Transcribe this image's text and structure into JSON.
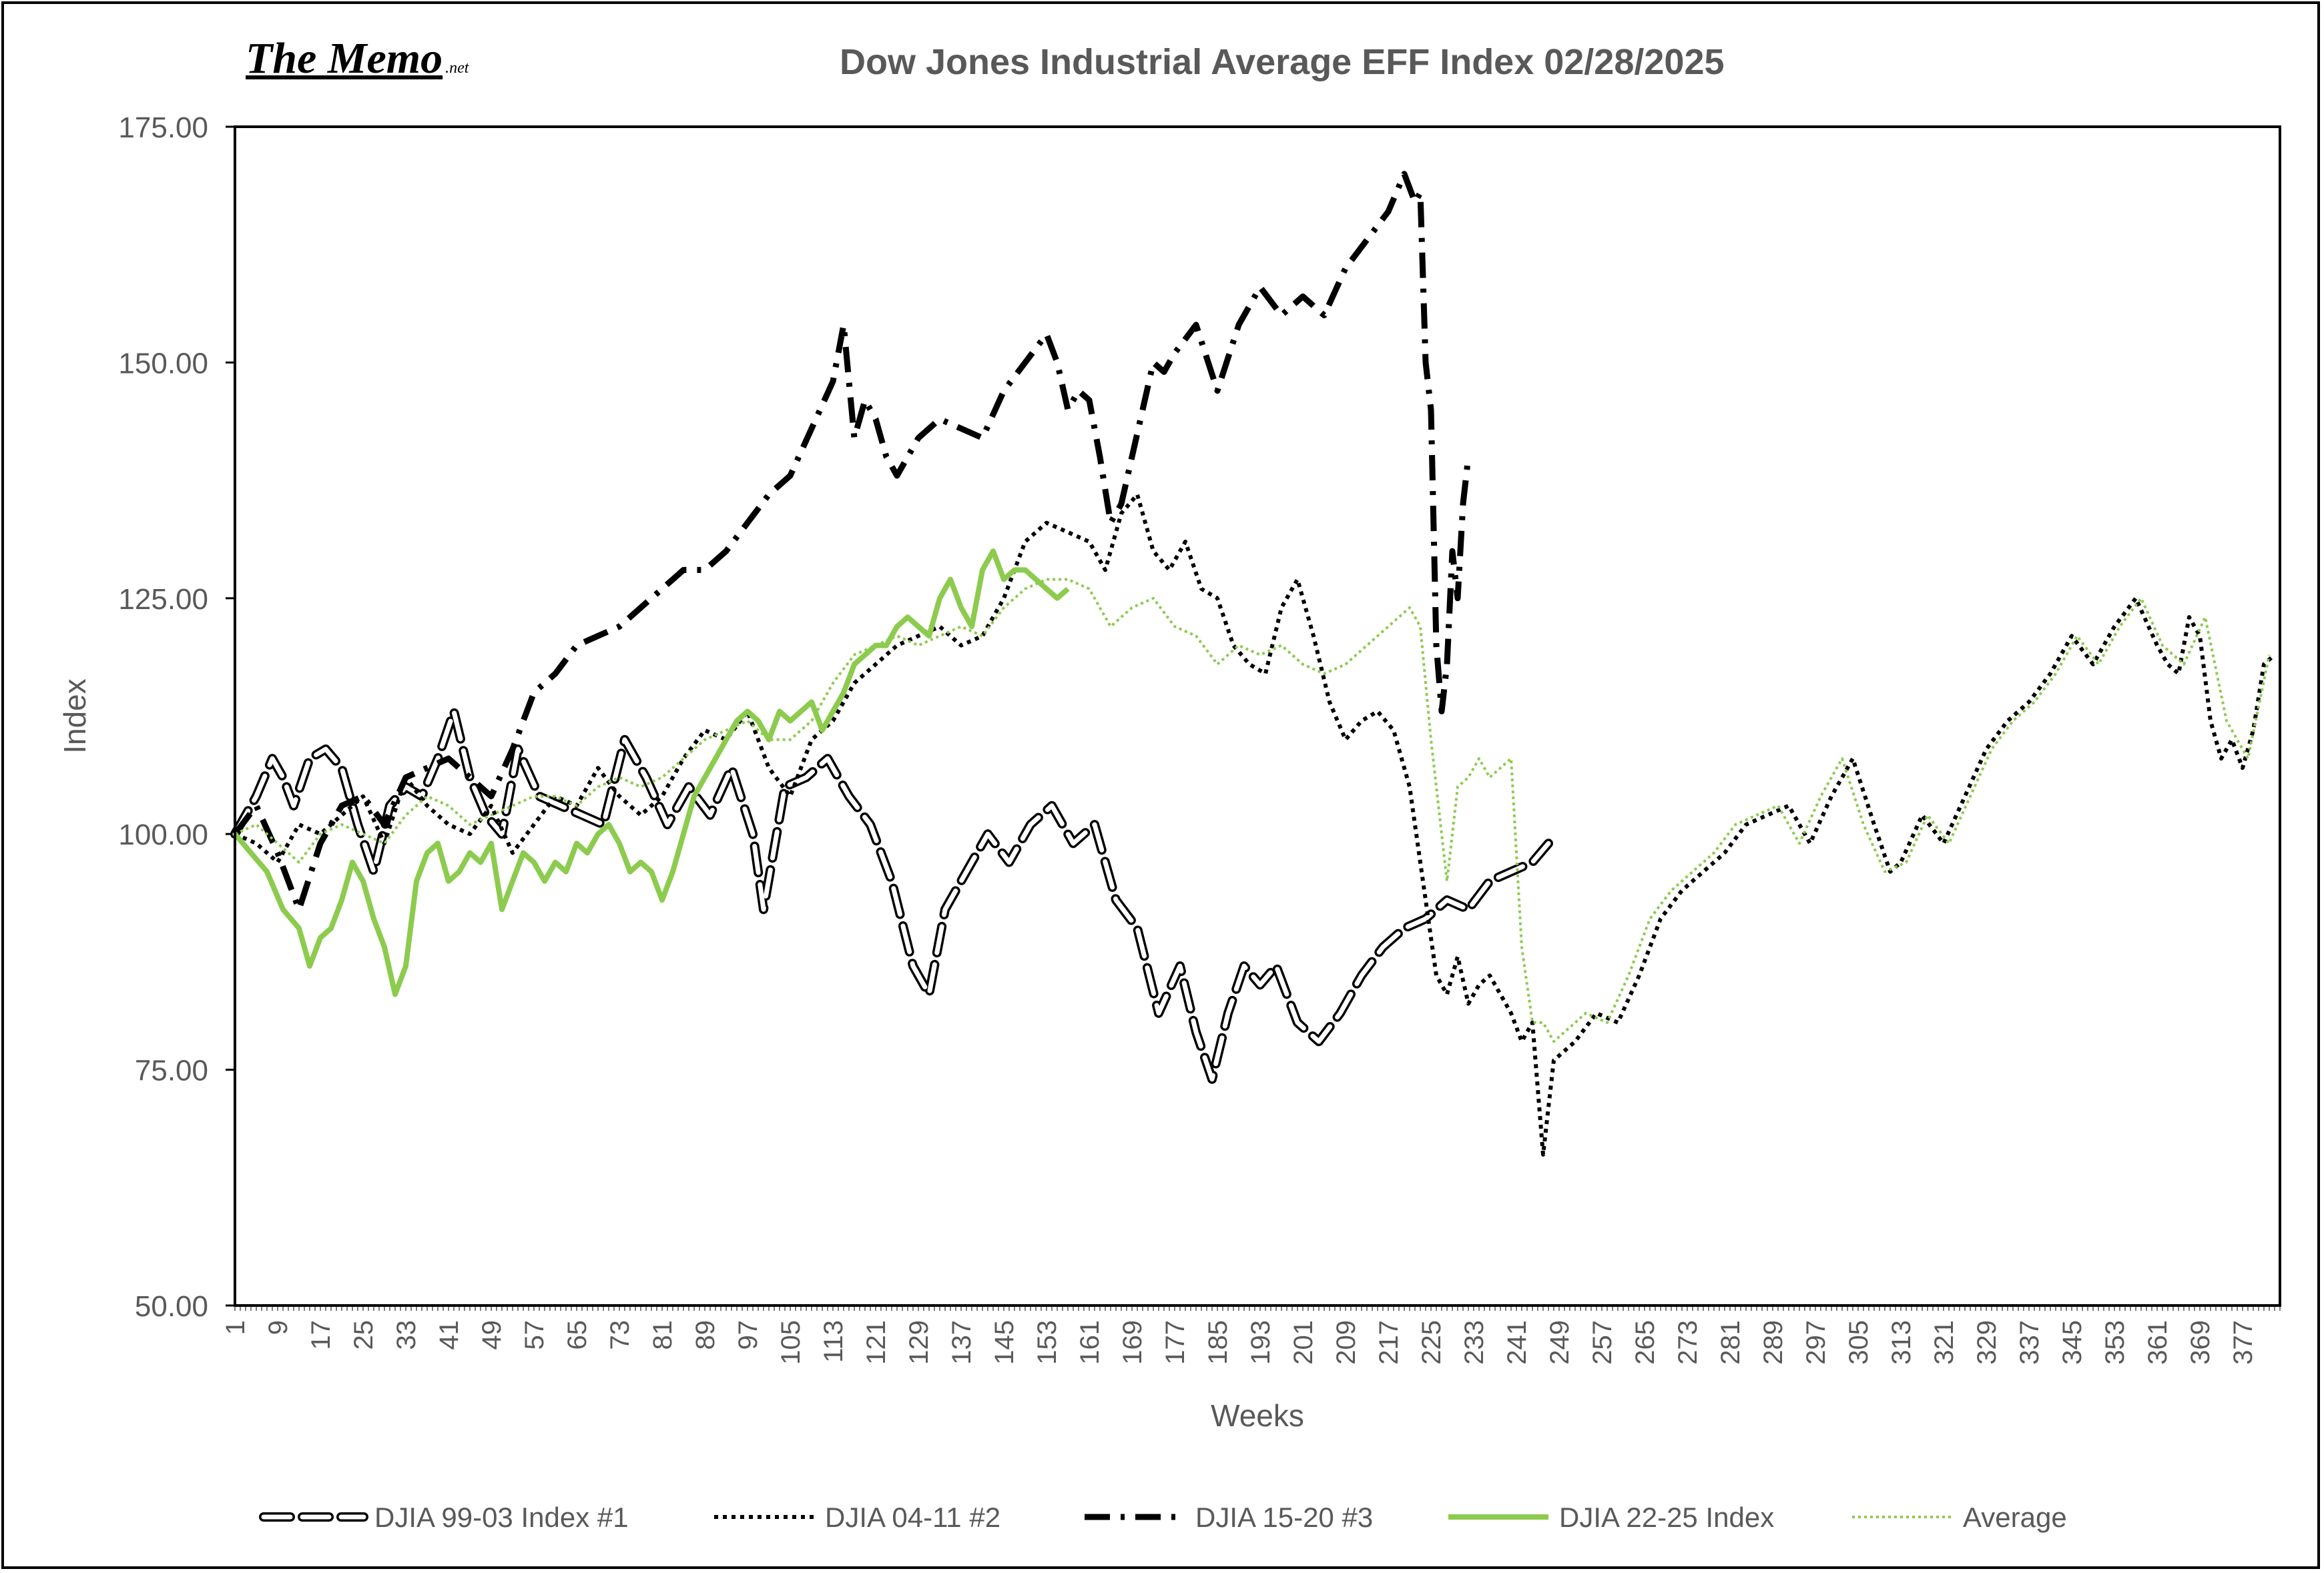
{
  "brand": {
    "name": "The Memo",
    "suffix": ".net"
  },
  "chart_data": {
    "type": "line",
    "title": "Dow Jones Industrial Average EFF Index 02/28/2025",
    "xlabel": "Weeks",
    "ylabel": "Index",
    "ylim": [
      50,
      175
    ],
    "xlim": [
      1,
      384
    ],
    "y_ticks": [
      "50.00",
      "75.00",
      "100.00",
      "125.00",
      "150.00",
      "175.00"
    ],
    "x_ticks": [
      "1",
      "9",
      "17",
      "25",
      "33",
      "41",
      "49",
      "57",
      "65",
      "73",
      "81",
      "89",
      "97",
      "105",
      "113",
      "121",
      "129",
      "137",
      "145",
      "153",
      "161",
      "169",
      "177",
      "185",
      "193",
      "201",
      "209",
      "217",
      "225",
      "233",
      "241",
      "249",
      "257",
      "265",
      "273",
      "281",
      "289",
      "297",
      "305",
      "313",
      "321",
      "329",
      "337",
      "345",
      "353",
      "361",
      "369",
      "377"
    ],
    "grid": false,
    "legend_position": "bottom",
    "series": [
      {
        "name": "DJIA 99-03 Index #1",
        "style": "long-dash-outline",
        "color": "#000000",
        "x": [
          1,
          5,
          8,
          10,
          12,
          15,
          18,
          21,
          24,
          27,
          30,
          33,
          36,
          39,
          42,
          45,
          48,
          51,
          54,
          58,
          62,
          66,
          70,
          74,
          78,
          82,
          86,
          90,
          94,
          98,
          100,
          104,
          108,
          112,
          116,
          120,
          124,
          128,
          131,
          134,
          138,
          142,
          146,
          150,
          154,
          158,
          162,
          166,
          170,
          174,
          178,
          181,
          184,
          187,
          190,
          193,
          196,
          200,
          204,
          208,
          212,
          216,
          220,
          224,
          228,
          232,
          236,
          240,
          244,
          247
        ],
        "y": [
          100,
          104,
          108,
          106,
          103,
          108,
          109,
          107,
          101,
          96,
          103,
          105,
          104,
          108,
          113,
          106,
          102,
          100,
          109,
          104,
          103,
          102,
          101,
          110,
          106,
          101,
          105,
          102,
          107,
          100,
          92,
          105,
          106,
          108,
          104,
          101,
          95,
          86,
          83,
          92,
          96,
          100,
          97,
          101,
          103,
          99,
          101,
          93,
          90,
          81,
          86,
          79,
          74,
          81,
          86,
          84,
          86,
          80,
          78,
          81,
          85,
          88,
          90,
          91,
          93,
          92,
          95,
          96,
          97,
          99
        ]
      },
      {
        "name": "DJIA  04-11 #2",
        "style": "dotted",
        "color": "#000000",
        "x": [
          1,
          5,
          9,
          13,
          17,
          21,
          25,
          29,
          33,
          37,
          41,
          45,
          49,
          53,
          57,
          61,
          65,
          69,
          73,
          77,
          81,
          85,
          89,
          93,
          97,
          101,
          105,
          109,
          113,
          117,
          121,
          125,
          129,
          133,
          137,
          141,
          145,
          149,
          153,
          157,
          161,
          164,
          167,
          170,
          173,
          176,
          179,
          182,
          185,
          188,
          191,
          194,
          197,
          200,
          203,
          206,
          209,
          212,
          215,
          218,
          221,
          224,
          226,
          228,
          230,
          232,
          234,
          236,
          238,
          240,
          242,
          244,
          246,
          248,
          252,
          256,
          260,
          264,
          268,
          272,
          276,
          280,
          284,
          288,
          292,
          296,
          300,
          304,
          308,
          311,
          313,
          317,
          321,
          325,
          329,
          333,
          337,
          341,
          345,
          349,
          353,
          357,
          361,
          363,
          365,
          367,
          369,
          371,
          373,
          375,
          377,
          379,
          381,
          383
        ],
        "y": [
          100,
          99,
          97,
          101,
          100,
          102,
          104,
          99,
          106,
          103,
          101,
          100,
          103,
          98,
          101,
          104,
          103,
          107,
          104,
          102,
          104,
          108,
          111,
          110,
          113,
          107,
          104,
          110,
          112,
          116,
          118,
          120,
          121,
          122,
          120,
          121,
          125,
          131,
          133,
          132,
          131,
          128,
          134,
          136,
          130,
          128,
          131,
          126,
          125,
          120,
          118,
          117,
          124,
          127,
          121,
          114,
          110,
          112,
          113,
          111,
          105,
          93,
          85,
          83,
          87,
          82,
          84,
          85,
          83,
          81,
          78,
          80,
          66,
          76,
          78,
          81,
          80,
          85,
          91,
          94,
          96,
          98,
          101,
          102,
          103,
          99,
          104,
          108,
          101,
          96,
          97,
          102,
          99,
          104,
          109,
          112,
          114,
          117,
          121,
          118,
          122,
          125,
          120,
          118,
          117,
          123,
          121,
          112,
          108,
          110,
          107,
          111,
          118,
          119
        ]
      },
      {
        "name": "DJIA 15-20 #3",
        "style": "dash-dot",
        "color": "#000000",
        "x": [
          1,
          5,
          9,
          13,
          17,
          21,
          25,
          29,
          33,
          37,
          41,
          45,
          49,
          53,
          57,
          61,
          65,
          69,
          73,
          77,
          81,
          85,
          89,
          93,
          97,
          101,
          105,
          109,
          113,
          115,
          117,
          119,
          121,
          123,
          125,
          129,
          133,
          137,
          141,
          145,
          149,
          153,
          155,
          157,
          159,
          161,
          163,
          165,
          167,
          169,
          171,
          173,
          175,
          177,
          181,
          185,
          189,
          193,
          197,
          201,
          205,
          209,
          213,
          217,
          220,
          222,
          223,
          224,
          225,
          226,
          227,
          228,
          229,
          230,
          231,
          232
        ],
        "y": [
          100,
          103,
          98,
          92,
          99,
          103,
          104,
          101,
          106,
          107,
          108,
          106,
          104,
          109,
          115,
          117,
          120,
          121,
          122,
          124,
          126,
          128,
          128,
          130,
          133,
          136,
          138,
          143,
          148,
          154,
          142,
          146,
          144,
          140,
          138,
          142,
          144,
          143,
          142,
          147,
          150,
          153,
          150,
          145,
          147,
          146,
          140,
          133,
          135,
          140,
          145,
          150,
          149,
          151,
          154,
          147,
          154,
          158,
          155,
          157,
          155,
          160,
          163,
          166,
          170,
          167,
          168,
          150,
          145,
          120,
          113,
          118,
          130,
          125,
          135,
          140
        ]
      },
      {
        "name": "DJIA 22-25 Index",
        "style": "solid",
        "color": "#8ccb4e",
        "x": [
          1,
          4,
          7,
          10,
          13,
          15,
          17,
          19,
          21,
          23,
          25,
          27,
          29,
          31,
          33,
          35,
          37,
          39,
          41,
          43,
          45,
          47,
          49,
          51,
          53,
          55,
          57,
          59,
          61,
          63,
          65,
          67,
          69,
          71,
          73,
          75,
          77,
          79,
          81,
          83,
          85,
          87,
          89,
          91,
          93,
          95,
          97,
          99,
          101,
          103,
          105,
          107,
          109,
          111,
          113,
          115,
          117,
          119,
          121,
          123,
          125,
          127,
          129,
          131,
          133,
          135,
          137,
          139,
          141,
          143,
          145,
          147,
          149,
          151,
          153,
          155,
          157
        ],
        "y": [
          100,
          98,
          96,
          92,
          90,
          86,
          89,
          90,
          93,
          97,
          95,
          91,
          88,
          83,
          86,
          95,
          98,
          99,
          95,
          96,
          98,
          97,
          99,
          92,
          95,
          98,
          97,
          95,
          97,
          96,
          99,
          98,
          100,
          101,
          99,
          96,
          97,
          96,
          93,
          96,
          100,
          104,
          106,
          108,
          110,
          112,
          113,
          112,
          110,
          113,
          112,
          113,
          114,
          111,
          113,
          115,
          118,
          119,
          120,
          120,
          122,
          123,
          122,
          121,
          125,
          127,
          124,
          122,
          128,
          130,
          127,
          128,
          128,
          127,
          126,
          125,
          126
        ]
      },
      {
        "name": "Average",
        "style": "thin-dotted",
        "color": "#8ccb4e",
        "x": [
          1,
          5,
          9,
          13,
          17,
          21,
          25,
          29,
          33,
          37,
          41,
          45,
          49,
          53,
          57,
          61,
          65,
          69,
          73,
          77,
          81,
          85,
          89,
          93,
          97,
          101,
          105,
          109,
          113,
          117,
          121,
          125,
          129,
          133,
          137,
          141,
          145,
          149,
          153,
          157,
          161,
          165,
          169,
          173,
          177,
          181,
          185,
          189,
          193,
          197,
          201,
          205,
          209,
          213,
          217,
          221,
          223,
          225,
          227,
          228,
          230,
          232,
          234,
          236,
          238,
          240,
          242,
          244,
          246,
          248,
          250,
          254,
          258,
          262,
          266,
          270,
          274,
          278,
          282,
          286,
          290,
          294,
          298,
          302,
          306,
          310,
          314,
          318,
          322,
          326,
          330,
          334,
          338,
          342,
          346,
          350,
          354,
          358,
          362,
          366,
          370,
          374,
          378,
          382
        ],
        "y": [
          100,
          101,
          99,
          97,
          100,
          101,
          100,
          99,
          102,
          104,
          103,
          101,
          102,
          103,
          104,
          104,
          103,
          105,
          106,
          105,
          106,
          108,
          110,
          111,
          112,
          110,
          110,
          112,
          116,
          119,
          120,
          121,
          120,
          121,
          122,
          121,
          124,
          126,
          127,
          127,
          126,
          122,
          124,
          125,
          122,
          121,
          118,
          120,
          119,
          120,
          118,
          117,
          118,
          120,
          122,
          124,
          122,
          110,
          100,
          95,
          105,
          106,
          108,
          106,
          107,
          108,
          88,
          80,
          80,
          78,
          79,
          81,
          80,
          85,
          91,
          94,
          96,
          98,
          101,
          102,
          103,
          99,
          104,
          108,
          101,
          96,
          97,
          102,
          99,
          104,
          109,
          112,
          114,
          117,
          121,
          118,
          122,
          125,
          120,
          118,
          123,
          112,
          108,
          119
        ]
      }
    ]
  }
}
